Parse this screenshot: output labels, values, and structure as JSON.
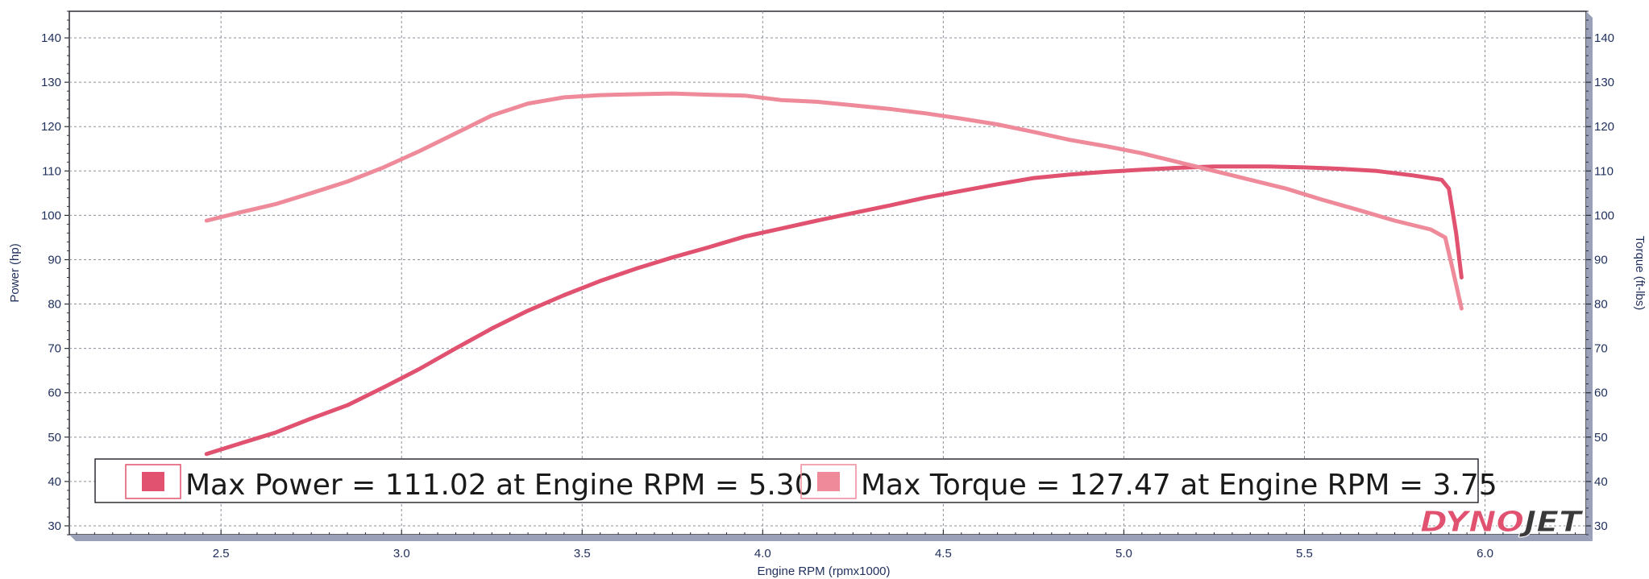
{
  "chart_data": {
    "type": "line",
    "xlabel": "Engine RPM (rpmx1000)",
    "ylabel_left": "Power (hp)",
    "ylabel_right": "Torque (ft-lbs)",
    "xlim": [
      2.08,
      6.28
    ],
    "ylim": [
      28,
      146
    ],
    "x_ticks": [
      "2.5",
      "3.0",
      "3.5",
      "4.0",
      "4.5",
      "5.0",
      "5.5",
      "6.0"
    ],
    "x_tick_values": [
      2.5,
      3.0,
      3.5,
      4.0,
      4.5,
      5.0,
      5.5,
      6.0
    ],
    "y_ticks": [
      "30",
      "40",
      "50",
      "60",
      "70",
      "80",
      "90",
      "100",
      "110",
      "120",
      "130",
      "140"
    ],
    "y_tick_values": [
      30,
      40,
      50,
      60,
      70,
      80,
      90,
      100,
      110,
      120,
      130,
      140
    ],
    "grid": true,
    "series": [
      {
        "name": "Power",
        "color": "#e0526f",
        "points": [
          [
            2.46,
            46.2
          ],
          [
            2.55,
            48.5
          ],
          [
            2.65,
            51.0
          ],
          [
            2.75,
            54.2
          ],
          [
            2.85,
            57.2
          ],
          [
            2.95,
            61.2
          ],
          [
            3.05,
            65.4
          ],
          [
            3.15,
            70.0
          ],
          [
            3.25,
            74.5
          ],
          [
            3.35,
            78.5
          ],
          [
            3.45,
            82.0
          ],
          [
            3.55,
            85.2
          ],
          [
            3.65,
            88.0
          ],
          [
            3.75,
            90.5
          ],
          [
            3.85,
            92.8
          ],
          [
            3.95,
            95.2
          ],
          [
            4.05,
            97.0
          ],
          [
            4.15,
            98.8
          ],
          [
            4.25,
            100.5
          ],
          [
            4.35,
            102.2
          ],
          [
            4.45,
            104.0
          ],
          [
            4.55,
            105.5
          ],
          [
            4.65,
            107.0
          ],
          [
            4.75,
            108.4
          ],
          [
            4.85,
            109.2
          ],
          [
            4.95,
            109.8
          ],
          [
            5.05,
            110.3
          ],
          [
            5.15,
            110.7
          ],
          [
            5.25,
            111.0
          ],
          [
            5.3,
            111.02
          ],
          [
            5.4,
            111.0
          ],
          [
            5.5,
            110.8
          ],
          [
            5.6,
            110.5
          ],
          [
            5.7,
            110.0
          ],
          [
            5.8,
            109.0
          ],
          [
            5.88,
            108.0
          ],
          [
            5.9,
            106.0
          ],
          [
            5.92,
            96.0
          ],
          [
            5.935,
            86.0
          ]
        ]
      },
      {
        "name": "Torque",
        "color": "#ee8a9a",
        "points": [
          [
            2.46,
            98.8
          ],
          [
            2.55,
            100.6
          ],
          [
            2.65,
            102.5
          ],
          [
            2.75,
            105.0
          ],
          [
            2.85,
            107.6
          ],
          [
            2.95,
            110.8
          ],
          [
            3.05,
            114.5
          ],
          [
            3.15,
            118.5
          ],
          [
            3.25,
            122.5
          ],
          [
            3.35,
            125.2
          ],
          [
            3.45,
            126.6
          ],
          [
            3.55,
            127.1
          ],
          [
            3.65,
            127.3
          ],
          [
            3.75,
            127.47
          ],
          [
            3.85,
            127.2
          ],
          [
            3.95,
            127.0
          ],
          [
            4.05,
            126.0
          ],
          [
            4.15,
            125.6
          ],
          [
            4.25,
            124.8
          ],
          [
            4.35,
            124.0
          ],
          [
            4.45,
            123.0
          ],
          [
            4.55,
            121.8
          ],
          [
            4.65,
            120.5
          ],
          [
            4.75,
            118.8
          ],
          [
            4.85,
            117.0
          ],
          [
            4.95,
            115.6
          ],
          [
            5.05,
            114.0
          ],
          [
            5.15,
            112.0
          ],
          [
            5.25,
            110.0
          ],
          [
            5.35,
            108.0
          ],
          [
            5.45,
            106.0
          ],
          [
            5.55,
            103.5
          ],
          [
            5.65,
            101.2
          ],
          [
            5.75,
            98.8
          ],
          [
            5.85,
            96.8
          ],
          [
            5.89,
            95.0
          ],
          [
            5.91,
            88.0
          ],
          [
            5.935,
            79.0
          ]
        ]
      }
    ],
    "annotations": {
      "legend": [
        {
          "label": "Max Power = 111.02 at Engine RPM = 5.30",
          "color": "#e0526f"
        },
        {
          "label": "Max Torque = 127.47 at Engine RPM = 3.75",
          "color": "#ee8a9a"
        }
      ],
      "legend_position": "bottom-left"
    }
  },
  "logo": {
    "part1": "DYNO",
    "part2": "JET",
    "color1": "#e0526f",
    "color2": "#3a3a3a"
  }
}
